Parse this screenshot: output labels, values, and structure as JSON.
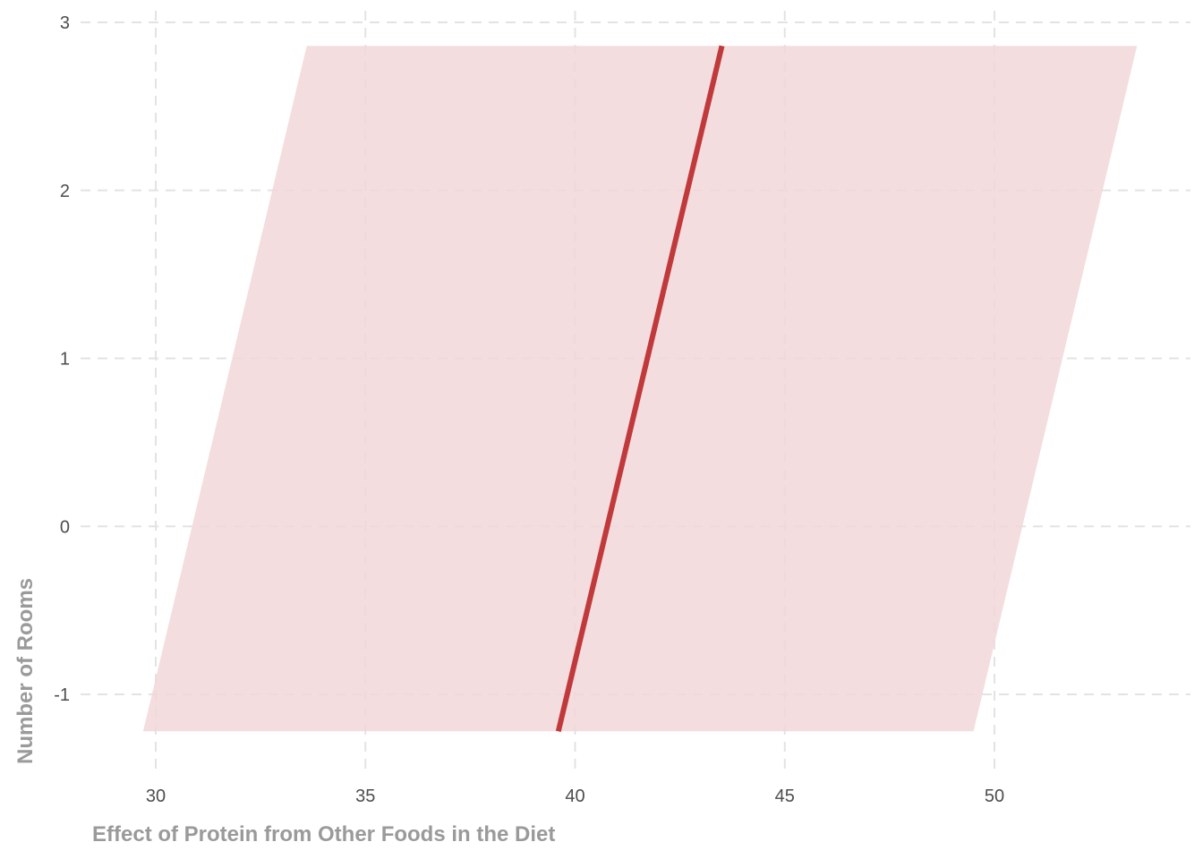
{
  "chart_data": {
    "type": "line",
    "title": "",
    "xlabel": "Effect of Protein from Other Foods in the Diet",
    "ylabel": "Number of Rooms",
    "xlim": [
      28.4,
      54.0
    ],
    "ylim": [
      -1.45,
      3.05
    ],
    "x_ticks": [
      "30",
      "35",
      "40",
      "45",
      "50"
    ],
    "y_ticks": [
      "-1",
      "0",
      "1",
      "2",
      "3"
    ],
    "grid": true,
    "grid_style": "dashed",
    "legend": "none",
    "series": [
      {
        "type": "line",
        "color": "#c0393b",
        "points": [
          [
            39.6,
            -1.22
          ],
          [
            43.5,
            2.86
          ]
        ]
      }
    ],
    "band": {
      "color": "#f2d7d8",
      "lower": [
        [
          29.7,
          -1.22
        ],
        [
          33.6,
          2.86
        ]
      ],
      "upper": [
        [
          49.5,
          -1.22
        ],
        [
          53.4,
          2.86
        ]
      ]
    }
  }
}
